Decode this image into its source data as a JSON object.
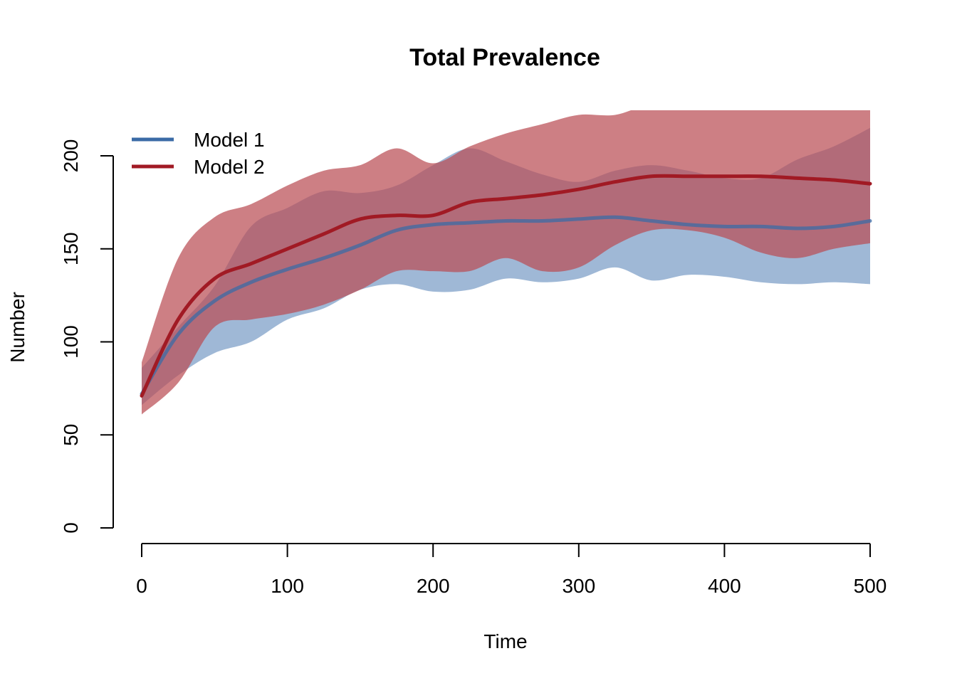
{
  "chart_data": {
    "type": "area",
    "title": "Total Prevalence",
    "xlabel": "Time",
    "ylabel": "Number",
    "xlim": [
      0,
      500
    ],
    "ylim": [
      0,
      215
    ],
    "x_ticks": [
      0,
      100,
      200,
      300,
      400,
      500
    ],
    "y_ticks": [
      0,
      50,
      100,
      150,
      200
    ],
    "x_tick_labels": [
      "0",
      "100",
      "200",
      "300",
      "400",
      "500"
    ],
    "y_tick_labels": [
      "0",
      "50",
      "100",
      "150",
      "200"
    ],
    "legend_position": "top-left",
    "grid": false,
    "x": [
      0,
      25,
      50,
      75,
      100,
      125,
      150,
      175,
      200,
      225,
      250,
      275,
      300,
      325,
      350,
      375,
      400,
      425,
      450,
      475,
      500
    ],
    "series": [
      {
        "name": "Model 1",
        "color": "#3B6BA6",
        "band_color": "#7A9CC6",
        "mean": [
          72,
          104,
          122,
          132,
          139,
          145,
          152,
          160,
          163,
          164,
          165,
          165,
          166,
          167,
          165,
          163,
          162,
          162,
          161,
          162,
          165
        ],
        "lower": [
          66,
          82,
          94,
          100,
          112,
          118,
          128,
          131,
          127,
          128,
          134,
          132,
          134,
          140,
          133,
          136,
          135,
          132,
          131,
          132,
          131
        ],
        "upper": [
          86,
          108,
          130,
          162,
          172,
          181,
          180,
          184,
          195,
          204,
          197,
          190,
          186,
          192,
          195,
          192,
          188,
          188,
          198,
          205,
          215
        ]
      },
      {
        "name": "Model 2",
        "color": "#A11A24",
        "band_color": "#BA4D55",
        "mean": [
          71,
          112,
          134,
          142,
          150,
          158,
          166,
          168,
          168,
          175,
          177,
          179,
          182,
          186,
          189,
          189,
          189,
          189,
          188,
          187,
          185
        ],
        "lower": [
          61,
          78,
          108,
          112,
          115,
          120,
          128,
          138,
          138,
          138,
          145,
          138,
          140,
          152,
          160,
          160,
          156,
          148,
          145,
          150,
          153
        ],
        "upper": [
          89,
          145,
          167,
          174,
          184,
          192,
          195,
          204,
          196,
          205,
          212,
          217,
          222,
          222,
          228,
          228,
          228,
          228,
          228,
          228,
          228
        ]
      }
    ]
  }
}
